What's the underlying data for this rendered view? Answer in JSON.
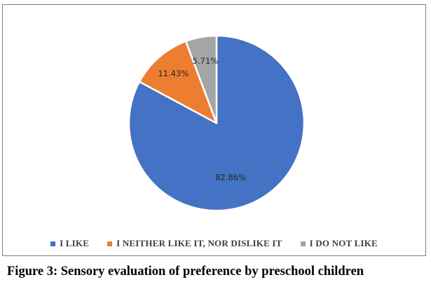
{
  "chart_data": {
    "type": "pie",
    "categories": [
      "I LIKE",
      "I NEITHER LIKE IT, NOR DISLIKE IT",
      "I DO NOT LIKE"
    ],
    "values": [
      82.86,
      11.43,
      5.71
    ],
    "value_labels": [
      "82.86%",
      "11.43%",
      "5.71%"
    ],
    "colors": [
      "#4472c4",
      "#ed7d31",
      "#a5a5a5"
    ],
    "legend_position": "bottom"
  },
  "caption": "Figure 3: Sensory evaluation of preference by preschool children"
}
